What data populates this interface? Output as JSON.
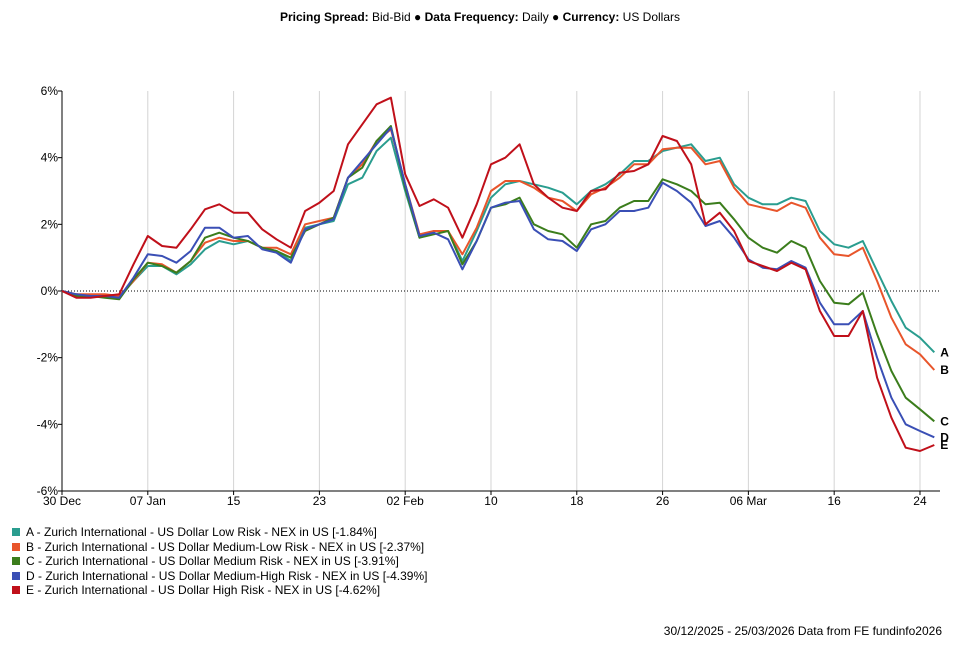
{
  "header": {
    "spread_label": "Pricing Spread:",
    "spread_value": "Bid-Bid",
    "sep": "●",
    "freq_label": "Data Frequency:",
    "freq_value": "Daily",
    "currency_label": "Currency:",
    "currency_value": "US Dollars"
  },
  "footer": {
    "text": "30/12/2025 - 25/03/2026 Data from FE fundinfo2026"
  },
  "chart_data": {
    "type": "line",
    "title": "",
    "xlabel": "",
    "ylabel": "",
    "ylim": [
      -6,
      6
    ],
    "yticks": [
      6,
      4,
      2,
      0,
      -2,
      -4,
      -6
    ],
    "ytick_labels": [
      "6%",
      "4%",
      "2%",
      "0%",
      "-2%",
      "-4%",
      "-6%"
    ],
    "x_tick_labels": [
      {
        "label": "30 Dec",
        "index": 0
      },
      {
        "label": "07 Jan",
        "index": 6
      },
      {
        "label": "15",
        "index": 12
      },
      {
        "label": "23",
        "index": 18
      },
      {
        "label": "02 Feb",
        "index": 24
      },
      {
        "label": "10",
        "index": 30
      },
      {
        "label": "18",
        "index": 36
      },
      {
        "label": "26",
        "index": 42
      },
      {
        "label": "06 Mar",
        "index": 48
      },
      {
        "label": "16",
        "index": 54
      },
      {
        "label": "24",
        "index": 60
      }
    ],
    "n_points": 62,
    "zero_line": true,
    "series": [
      {
        "key": "A",
        "name": "A - Zurich International - US Dollar Low Risk - NEX in US [-1.84%]",
        "color": "#2a9d8f",
        "values": [
          0,
          -0.1,
          -0.15,
          -0.15,
          -0.2,
          0.3,
          0.75,
          0.75,
          0.5,
          0.8,
          1.25,
          1.5,
          1.4,
          1.5,
          1.3,
          1.2,
          0.9,
          1.9,
          2.0,
          2.1,
          3.2,
          3.4,
          4.2,
          4.6,
          3.0,
          1.6,
          1.8,
          1.8,
          0.9,
          1.8,
          2.8,
          3.2,
          3.3,
          3.2,
          3.1,
          2.95,
          2.6,
          3.0,
          3.2,
          3.5,
          3.9,
          3.9,
          4.2,
          4.3,
          4.4,
          3.9,
          4.0,
          3.2,
          2.8,
          2.6,
          2.6,
          2.8,
          2.7,
          1.8,
          1.4,
          1.3,
          1.5,
          0.6,
          -0.3,
          -1.1,
          -1.4,
          -1.84
        ]
      },
      {
        "key": "B",
        "name": "B - Zurich International - US Dollar Medium-Low Risk - NEX in US [-2.37%]",
        "color": "#e8552b",
        "values": [
          0,
          -0.1,
          -0.1,
          -0.1,
          -0.15,
          0.3,
          0.85,
          0.8,
          0.55,
          0.9,
          1.45,
          1.6,
          1.5,
          1.5,
          1.3,
          1.3,
          1.1,
          2.0,
          2.1,
          2.2,
          3.4,
          3.8,
          4.5,
          4.85,
          3.2,
          1.7,
          1.8,
          1.8,
          1.1,
          1.9,
          3.0,
          3.3,
          3.3,
          3.1,
          2.8,
          2.7,
          2.4,
          2.9,
          3.1,
          3.4,
          3.8,
          3.8,
          4.25,
          4.3,
          4.3,
          3.8,
          3.9,
          3.1,
          2.6,
          2.5,
          2.4,
          2.65,
          2.5,
          1.6,
          1.1,
          1.05,
          1.3,
          0.3,
          -0.8,
          -1.6,
          -1.9,
          -2.37
        ]
      },
      {
        "key": "C",
        "name": "C - Zurich International - US Dollar Medium Risk - NEX in US [-3.91%]",
        "color": "#3b7d1c",
        "values": [
          0,
          -0.15,
          -0.15,
          -0.2,
          -0.25,
          0.35,
          0.85,
          0.75,
          0.55,
          0.9,
          1.6,
          1.75,
          1.6,
          1.5,
          1.3,
          1.2,
          1.0,
          1.8,
          2.0,
          2.2,
          3.4,
          3.7,
          4.5,
          4.95,
          3.1,
          1.6,
          1.7,
          1.8,
          0.8,
          1.5,
          2.5,
          2.6,
          2.8,
          2.0,
          1.8,
          1.7,
          1.3,
          2.0,
          2.1,
          2.5,
          2.7,
          2.7,
          3.35,
          3.2,
          3.0,
          2.6,
          2.65,
          2.15,
          1.6,
          1.3,
          1.15,
          1.5,
          1.3,
          0.3,
          -0.35,
          -0.4,
          -0.05,
          -1.3,
          -2.4,
          -3.2,
          -3.55,
          -3.91
        ]
      },
      {
        "key": "D",
        "name": "D - Zurich International - US Dollar Medium-High Risk - NEX in US [-4.39%]",
        "color": "#3a4fb5",
        "values": [
          0,
          -0.1,
          -0.15,
          -0.15,
          -0.2,
          0.4,
          1.1,
          1.05,
          0.85,
          1.2,
          1.9,
          1.9,
          1.6,
          1.65,
          1.25,
          1.15,
          0.85,
          1.85,
          2.0,
          2.15,
          3.4,
          3.9,
          4.4,
          4.9,
          3.2,
          1.65,
          1.75,
          1.55,
          0.65,
          1.5,
          2.5,
          2.65,
          2.7,
          1.85,
          1.55,
          1.5,
          1.2,
          1.85,
          2.0,
          2.4,
          2.4,
          2.5,
          3.25,
          3.0,
          2.65,
          1.95,
          2.1,
          1.6,
          0.95,
          0.7,
          0.65,
          0.9,
          0.7,
          -0.35,
          -1.0,
          -1.0,
          -0.6,
          -2.0,
          -3.2,
          -4.0,
          -4.2,
          -4.39
        ]
      },
      {
        "key": "E",
        "name": "E - Zurich International - US Dollar High Risk - NEX in US [-4.62%]",
        "color": "#c0101a",
        "values": [
          0,
          -0.2,
          -0.2,
          -0.15,
          -0.1,
          0.8,
          1.65,
          1.35,
          1.3,
          1.85,
          2.45,
          2.6,
          2.35,
          2.35,
          1.85,
          1.55,
          1.3,
          2.4,
          2.65,
          3.0,
          4.4,
          5.0,
          5.6,
          5.8,
          3.5,
          2.55,
          2.75,
          2.5,
          1.6,
          2.6,
          3.8,
          4.0,
          4.4,
          3.2,
          2.8,
          2.5,
          2.4,
          3.0,
          3.05,
          3.55,
          3.6,
          3.8,
          4.65,
          4.5,
          3.8,
          2.0,
          2.35,
          1.8,
          0.9,
          0.75,
          0.6,
          0.85,
          0.65,
          -0.6,
          -1.35,
          -1.35,
          -0.6,
          -2.6,
          -3.8,
          -4.7,
          -4.8,
          -4.62
        ]
      }
    ]
  }
}
